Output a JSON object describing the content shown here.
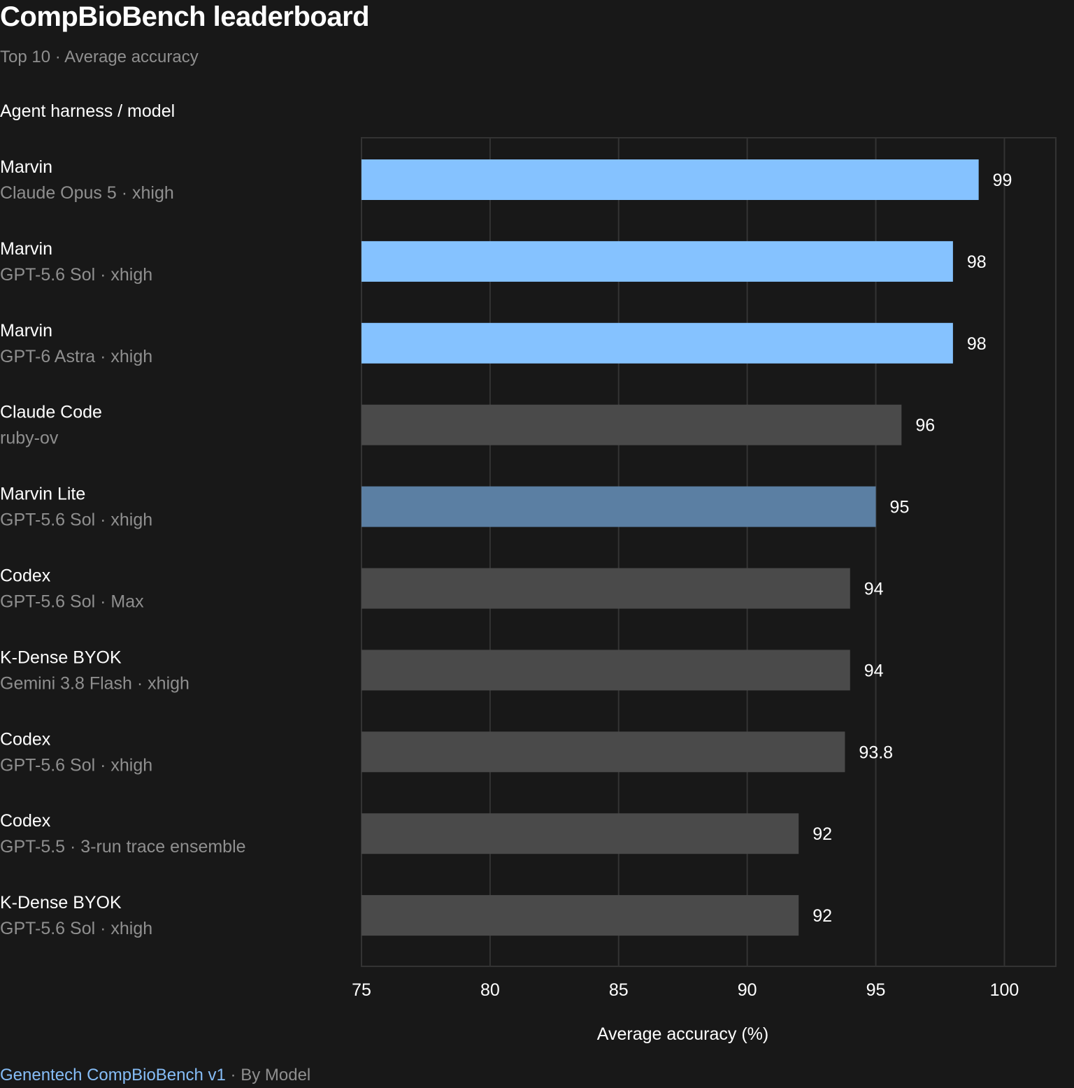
{
  "header": {
    "title": "CompBioBench leaderboard",
    "subtitle": "Top 10 · Average accuracy",
    "column_label": "Agent harness / model"
  },
  "footer": {
    "source": "Genentech CompBioBench v1",
    "separator": " · ",
    "byline": "By Model"
  },
  "colors": {
    "highlight": "#85c2ff",
    "highlight_lite": "#5b7fa3",
    "other": "#4a4a4a",
    "grid": "#333333",
    "muted_text": "#8f8f8f"
  },
  "chart_data": {
    "type": "bar",
    "orientation": "horizontal",
    "xlabel": "Average accuracy (%)",
    "xlim": [
      75,
      102
    ],
    "xticks": [
      75,
      80,
      85,
      90,
      95,
      100
    ],
    "grid": true,
    "rows": [
      {
        "harness": "Marvin",
        "model": "Claude Opus 5 · xhigh",
        "value": 99,
        "label": "99",
        "group": "highlight"
      },
      {
        "harness": "Marvin",
        "model": "GPT-5.6 Sol · xhigh",
        "value": 98,
        "label": "98",
        "group": "highlight"
      },
      {
        "harness": "Marvin",
        "model": "GPT-6 Astra · xhigh",
        "value": 98,
        "label": "98",
        "group": "highlight"
      },
      {
        "harness": "Claude Code",
        "model": "ruby-ov",
        "value": 96,
        "label": "96",
        "group": "other"
      },
      {
        "harness": "Marvin Lite",
        "model": "GPT-5.6 Sol · xhigh",
        "value": 95,
        "label": "95",
        "group": "highlight_lite"
      },
      {
        "harness": "Codex",
        "model": "GPT-5.6 Sol · Max",
        "value": 94,
        "label": "94",
        "group": "other"
      },
      {
        "harness": "K-Dense BYOK",
        "model": "Gemini 3.8 Flash · xhigh",
        "value": 94,
        "label": "94",
        "group": "other"
      },
      {
        "harness": "Codex",
        "model": "GPT-5.6 Sol · xhigh",
        "value": 93.8,
        "label": "93.8",
        "group": "other"
      },
      {
        "harness": "Codex",
        "model": "GPT-5.5 · 3-run trace ensemble",
        "value": 92,
        "label": "92",
        "group": "other"
      },
      {
        "harness": "K-Dense BYOK",
        "model": "GPT-5.6 Sol · xhigh",
        "value": 92,
        "label": "92",
        "group": "other"
      }
    ]
  }
}
